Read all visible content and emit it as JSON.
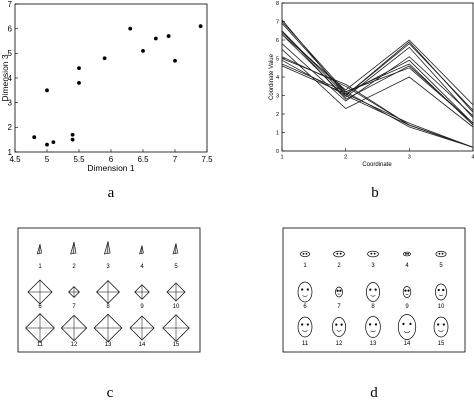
{
  "panels": [
    {
      "id": "a",
      "label": "a"
    },
    {
      "id": "b",
      "label": "b"
    },
    {
      "id": "c",
      "label": "c"
    },
    {
      "id": "d",
      "label": "d"
    }
  ],
  "chart_data": [
    {
      "panel": "a",
      "type": "scatter",
      "xlabel": "Dimension 1",
      "ylabel": "Dimension 3",
      "xlim": [
        4.5,
        7.5
      ],
      "ylim": [
        1,
        7
      ],
      "xticks": [
        "4.5",
        "5",
        "5.5",
        "6",
        "6.5",
        "7",
        "7.5"
      ],
      "yticks": [
        "1",
        "2",
        "3",
        "4",
        "5",
        "6",
        "7"
      ],
      "grid": false,
      "points": [
        {
          "x": 4.8,
          "y": 1.6
        },
        {
          "x": 5.0,
          "y": 1.3
        },
        {
          "x": 5.1,
          "y": 1.4
        },
        {
          "x": 5.4,
          "y": 1.5
        },
        {
          "x": 5.4,
          "y": 1.7
        },
        {
          "x": 5.0,
          "y": 3.5
        },
        {
          "x": 5.5,
          "y": 3.8
        },
        {
          "x": 5.5,
          "y": 4.4
        },
        {
          "x": 5.9,
          "y": 4.8
        },
        {
          "x": 6.3,
          "y": 6.0
        },
        {
          "x": 6.5,
          "y": 5.1
        },
        {
          "x": 6.7,
          "y": 5.6
        },
        {
          "x": 6.9,
          "y": 5.7
        },
        {
          "x": 7.0,
          "y": 4.7
        },
        {
          "x": 7.4,
          "y": 6.1
        }
      ]
    },
    {
      "panel": "b",
      "type": "line",
      "xlabel": "Coordinate",
      "ylabel": "Coordinate Value",
      "xlim": [
        1,
        4
      ],
      "ylim": [
        0,
        8
      ],
      "xticks": [
        "1",
        "2",
        "3",
        "4"
      ],
      "yticks": [
        "0",
        "1",
        "2",
        "3",
        "4",
        "5",
        "6",
        "7",
        "8"
      ],
      "grid": false,
      "x": [
        1,
        2,
        3,
        4
      ],
      "series": [
        {
          "values": [
            5.1,
            3.5,
            1.4,
            0.2
          ]
        },
        {
          "values": [
            4.9,
            3.0,
            1.4,
            0.2
          ]
        },
        {
          "values": [
            4.7,
            3.2,
            1.3,
            0.2
          ]
        },
        {
          "values": [
            4.6,
            3.1,
            1.5,
            0.2
          ]
        },
        {
          "values": [
            5.0,
            3.6,
            1.4,
            0.2
          ]
        },
        {
          "values": [
            7.0,
            3.2,
            4.7,
            1.4
          ]
        },
        {
          "values": [
            6.4,
            3.2,
            4.5,
            1.5
          ]
        },
        {
          "values": [
            6.9,
            3.1,
            4.9,
            1.5
          ]
        },
        {
          "values": [
            5.5,
            2.3,
            4.0,
            1.3
          ]
        },
        {
          "values": [
            6.5,
            2.8,
            4.6,
            1.5
          ]
        },
        {
          "values": [
            6.3,
            3.3,
            6.0,
            2.5
          ]
        },
        {
          "values": [
            5.8,
            2.7,
            5.1,
            1.9
          ]
        },
        {
          "values": [
            7.1,
            3.0,
            5.9,
            2.1
          ]
        },
        {
          "values": [
            6.3,
            2.9,
            5.6,
            1.8
          ]
        },
        {
          "values": [
            6.5,
            3.0,
            5.8,
            2.2
          ]
        }
      ]
    },
    {
      "panel": "c",
      "type": "glyph-grid",
      "rows": [
        {
          "glyph": "tall-spike",
          "items": [
            {
              "label": "1",
              "scale": 0.7
            },
            {
              "label": "2",
              "scale": 0.85
            },
            {
              "label": "3",
              "scale": 0.9
            },
            {
              "label": "4",
              "scale": 0.6
            },
            {
              "label": "5",
              "scale": 0.75
            }
          ]
        },
        {
          "glyph": "diamond",
          "items": [
            {
              "label": "6",
              "scale": 1.0
            },
            {
              "label": "7",
              "scale": 0.45
            },
            {
              "label": "8",
              "scale": 0.95
            },
            {
              "label": "9",
              "scale": 0.6
            },
            {
              "label": "10",
              "scale": 0.75
            }
          ]
        },
        {
          "glyph": "diamond",
          "items": [
            {
              "label": "11",
              "scale": 1.2
            },
            {
              "label": "12",
              "scale": 1.05
            },
            {
              "label": "13",
              "scale": 1.15
            },
            {
              "label": "14",
              "scale": 1.0
            },
            {
              "label": "15",
              "scale": 1.1
            }
          ]
        }
      ]
    },
    {
      "panel": "d",
      "type": "glyph-grid",
      "rows": [
        {
          "glyph": "flat-face",
          "items": [
            {
              "label": "1",
              "scale": 0.8
            },
            {
              "label": "2",
              "scale": 0.9
            },
            {
              "label": "3",
              "scale": 0.9
            },
            {
              "label": "4",
              "scale": 0.6
            },
            {
              "label": "5",
              "scale": 0.85
            }
          ]
        },
        {
          "glyph": "face",
          "items": [
            {
              "label": "6",
              "scale": 1.0
            },
            {
              "label": "7",
              "scale": 0.5
            },
            {
              "label": "8",
              "scale": 0.95
            },
            {
              "label": "9",
              "scale": 0.55
            },
            {
              "label": "10",
              "scale": 0.8
            }
          ]
        },
        {
          "glyph": "face",
          "items": [
            {
              "label": "11",
              "scale": 1.0
            },
            {
              "label": "12",
              "scale": 0.95
            },
            {
              "label": "13",
              "scale": 1.05
            },
            {
              "label": "14",
              "scale": 1.25
            },
            {
              "label": "15",
              "scale": 1.0
            }
          ]
        }
      ]
    }
  ]
}
